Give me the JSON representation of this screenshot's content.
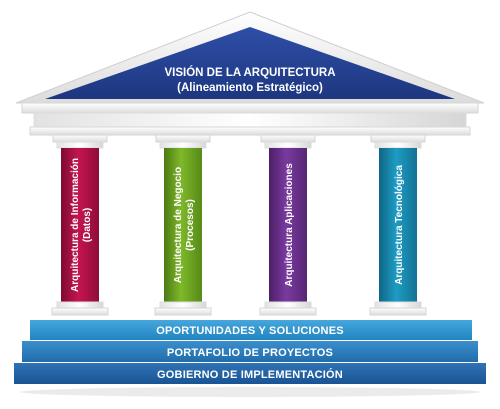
{
  "roof": {
    "title": "VISIÓN DE LA ARQUITECTURA",
    "subtitle": "(Alineamiento Estratégico)"
  },
  "pillars": [
    {
      "line1": "Arquitectura de Información",
      "line2": "(Datos)",
      "color": "#c4154f",
      "dark": "#7d0a30"
    },
    {
      "line1": "Arquitectura de Negocio",
      "line2": "(Procesos)",
      "color": "#7fb82a",
      "dark": "#4c7a14"
    },
    {
      "line1": "Arquitectura Aplicaciones",
      "line2": "",
      "color": "#7a3aa0",
      "dark": "#4b1f66"
    },
    {
      "line1": "Arquitectura Tecnológica",
      "line2": "",
      "color": "#1e9cc4",
      "dark": "#0f6585"
    }
  ],
  "steps": [
    {
      "label": "OPORTUNIDADES Y SOLUCIONES",
      "color": "#2a8fca"
    },
    {
      "label": "PORTAFOLIO DE PROYECTOS",
      "color": "#2677b8"
    },
    {
      "label": "GOBIERNO DE IMPLEMENTACIÓN",
      "color": "#1f5ea2"
    }
  ],
  "colors": {
    "roof": "#233f94",
    "stone": "#f1f1f1"
  }
}
